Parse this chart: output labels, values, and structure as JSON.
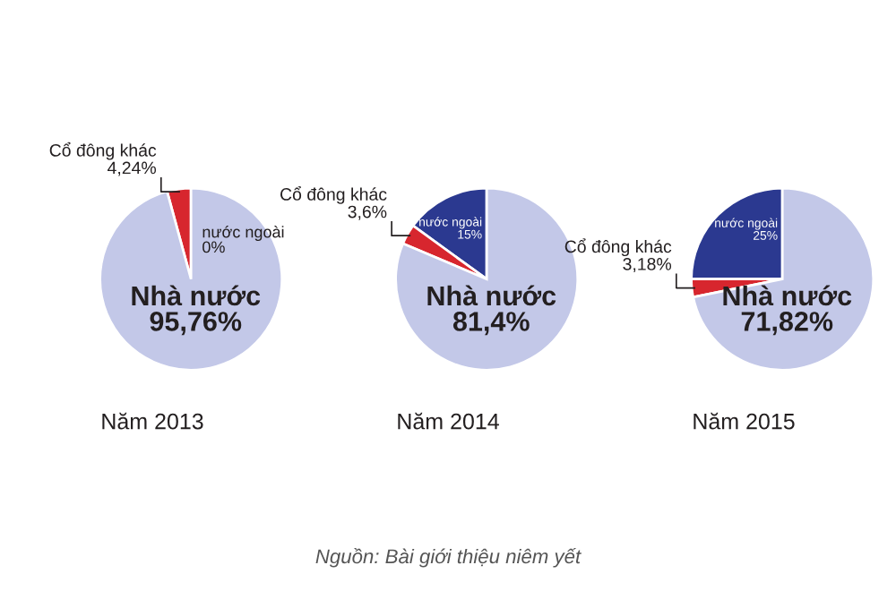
{
  "chart_data": [
    {
      "type": "pie",
      "title": "Năm 2013",
      "categories": [
        "nước ngoài",
        "Cổ đông khác",
        "Nhà nước"
      ],
      "values": [
        0,
        4.24,
        95.76
      ],
      "colors": [
        "#2b3990",
        "#d7262e",
        "#c3c8e8"
      ],
      "value_labels": [
        "0%",
        "4,24%",
        "95,76%"
      ]
    },
    {
      "type": "pie",
      "title": "Năm 2014",
      "categories": [
        "nước ngoài",
        "Cổ đông khác",
        "Nhà nước"
      ],
      "values": [
        15,
        3.6,
        81.4
      ],
      "colors": [
        "#2b3990",
        "#d7262e",
        "#c3c8e8"
      ],
      "value_labels": [
        "15%",
        "3,6%",
        "81,4%"
      ]
    },
    {
      "type": "pie",
      "title": "Năm 2015",
      "categories": [
        "nước ngoài",
        "Cổ đông khác",
        "Nhà nước"
      ],
      "values": [
        25,
        3.18,
        71.82
      ],
      "colors": [
        "#2b3990",
        "#d7262e",
        "#c3c8e8"
      ],
      "value_labels": [
        "25%",
        "3,18%",
        "71,82%"
      ],
      "annotations": [
        "Nguồn: Bài giới thiệu niêm yết"
      ]
    }
  ]
}
